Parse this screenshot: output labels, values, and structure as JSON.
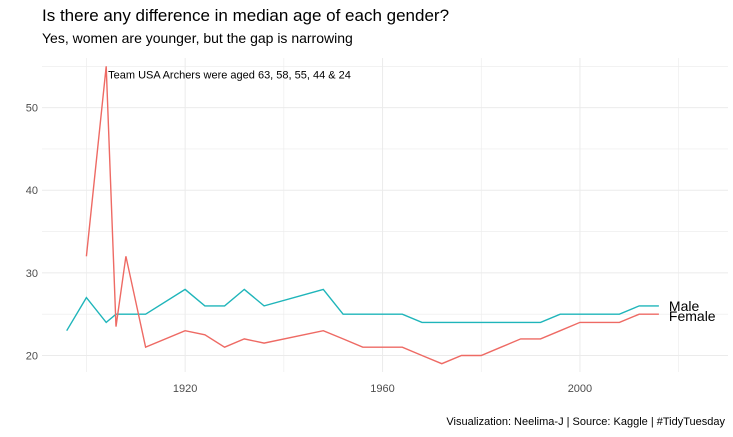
{
  "title": "Is there any difference in median age of each gender?",
  "subtitle": "Yes, women are younger, but the gap is narrowing",
  "caption": "Visualization: Neelima-J | Source: Kaggle | #TidyTuesday",
  "chart_data": {
    "type": "line",
    "xlim": [
      1891,
      2030
    ],
    "ylim": [
      18,
      56
    ],
    "x_ticks": [
      1920,
      1960,
      2000
    ],
    "y_ticks": [
      20,
      30,
      40,
      50
    ],
    "grid": true,
    "annotation": {
      "text": "Team USA Archers were aged 63, 58, 55, 44 & 24",
      "x": 1904,
      "y": 54
    },
    "series": [
      {
        "name": "Male",
        "color": "#1FB5BA",
        "points": [
          [
            1896,
            23
          ],
          [
            1900,
            27
          ],
          [
            1904,
            24
          ],
          [
            1906,
            25
          ],
          [
            1908,
            25
          ],
          [
            1912,
            25
          ],
          [
            1920,
            28
          ],
          [
            1924,
            26
          ],
          [
            1928,
            26
          ],
          [
            1932,
            28
          ],
          [
            1936,
            26
          ],
          [
            1948,
            28
          ],
          [
            1952,
            25
          ],
          [
            1956,
            25
          ],
          [
            1960,
            25
          ],
          [
            1964,
            25
          ],
          [
            1968,
            24
          ],
          [
            1972,
            24
          ],
          [
            1976,
            24
          ],
          [
            1980,
            24
          ],
          [
            1984,
            24
          ],
          [
            1988,
            24
          ],
          [
            1992,
            24
          ],
          [
            1996,
            25
          ],
          [
            2000,
            25
          ],
          [
            2004,
            25
          ],
          [
            2008,
            25
          ],
          [
            2012,
            26
          ],
          [
            2016,
            26
          ]
        ]
      },
      {
        "name": "Female",
        "color": "#EE6A64",
        "points": [
          [
            1900,
            32
          ],
          [
            1904,
            55
          ],
          [
            1906,
            23.5
          ],
          [
            1908,
            32
          ],
          [
            1912,
            21
          ],
          [
            1920,
            23
          ],
          [
            1924,
            22.5
          ],
          [
            1928,
            21
          ],
          [
            1932,
            22
          ],
          [
            1936,
            21.5
          ],
          [
            1948,
            23
          ],
          [
            1952,
            22
          ],
          [
            1956,
            21
          ],
          [
            1960,
            21
          ],
          [
            1964,
            21
          ],
          [
            1968,
            20
          ],
          [
            1972,
            19
          ],
          [
            1976,
            20
          ],
          [
            1980,
            20
          ],
          [
            1984,
            21
          ],
          [
            1988,
            22
          ],
          [
            1992,
            22
          ],
          [
            1996,
            23
          ],
          [
            2000,
            24
          ],
          [
            2004,
            24
          ],
          [
            2008,
            24
          ],
          [
            2012,
            25
          ],
          [
            2016,
            25
          ]
        ]
      }
    ]
  }
}
